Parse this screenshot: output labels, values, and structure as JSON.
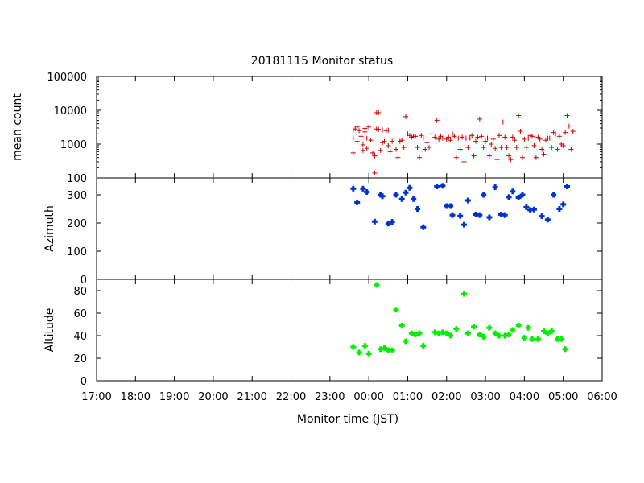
{
  "chart_data": {
    "type": "scatter",
    "title": "20181115 Monitor status",
    "xlabel": "Monitor time (JST)",
    "x_ticks": [
      "17:00",
      "18:00",
      "19:00",
      "20:00",
      "21:00",
      "22:00",
      "23:00",
      "00:00",
      "01:00",
      "02:00",
      "03:00",
      "04:00",
      "05:00",
      "06:00"
    ],
    "xlim_hours": [
      17,
      30
    ],
    "grid": false,
    "panels": [
      {
        "name": "mean-count",
        "ylabel": "mean count",
        "scale": "log",
        "ylim": [
          100,
          100000
        ],
        "y_ticks": [
          "100",
          "1000",
          "10000",
          "100000"
        ],
        "y_tick_values": [
          100,
          1000,
          10000,
          100000
        ],
        "marker": "plus",
        "color": "#cc0000",
        "series": [
          {
            "name": "",
            "points": [
              [
                23.6,
                2600
              ],
              [
                23.6,
                1500
              ],
              [
                23.6,
                550
              ],
              [
                23.65,
                2800
              ],
              [
                23.7,
                3200
              ],
              [
                23.7,
                1200
              ],
              [
                23.75,
                2500
              ],
              [
                23.8,
                1700
              ],
              [
                23.85,
                950
              ],
              [
                23.85,
                650
              ],
              [
                23.9,
                2900
              ],
              [
                23.9,
                2300
              ],
              [
                23.95,
                1500
              ],
              [
                23.95,
                750
              ],
              [
                24.0,
                3200
              ],
              [
                24.05,
                1300
              ],
              [
                24.1,
                550
              ],
              [
                24.15,
                140
              ],
              [
                24.15,
                450
              ],
              [
                24.2,
                2800
              ],
              [
                24.2,
                8500
              ],
              [
                24.25,
                8500
              ],
              [
                24.25,
                2700
              ],
              [
                24.3,
                650
              ],
              [
                24.35,
                1100
              ],
              [
                24.35,
                2600
              ],
              [
                24.4,
                1200
              ],
              [
                24.45,
                2500
              ],
              [
                24.5,
                2600
              ],
              [
                24.5,
                900
              ],
              [
                24.55,
                600
              ],
              [
                24.6,
                1200
              ],
              [
                24.65,
                1500
              ],
              [
                24.7,
                700
              ],
              [
                24.75,
                400
              ],
              [
                24.8,
                1200
              ],
              [
                24.85,
                1300
              ],
              [
                24.9,
                800
              ],
              [
                24.95,
                6500
              ],
              [
                25.0,
                2000
              ],
              [
                25.05,
                1800
              ],
              [
                25.1,
                1600
              ],
              [
                25.15,
                1700
              ],
              [
                25.2,
                1700
              ],
              [
                25.25,
                800
              ],
              [
                25.3,
                400
              ],
              [
                25.35,
                1800
              ],
              [
                25.4,
                1500
              ],
              [
                25.45,
                700
              ],
              [
                25.5,
                1100
              ],
              [
                25.55,
                800
              ],
              [
                25.6,
                2000
              ],
              [
                25.7,
                1600
              ],
              [
                25.75,
                5000
              ],
              [
                25.8,
                1400
              ],
              [
                25.85,
                1700
              ],
              [
                25.9,
                1500
              ],
              [
                26.0,
                1400
              ],
              [
                26.05,
                1600
              ],
              [
                26.1,
                1300
              ],
              [
                26.15,
                2000
              ],
              [
                26.2,
                1700
              ],
              [
                26.25,
                400
              ],
              [
                26.3,
                1500
              ],
              [
                26.35,
                700
              ],
              [
                26.4,
                1600
              ],
              [
                26.45,
                300
              ],
              [
                26.5,
                1500
              ],
              [
                26.55,
                800
              ],
              [
                26.6,
                1500
              ],
              [
                26.65,
                1800
              ],
              [
                26.7,
                450
              ],
              [
                26.75,
                1200
              ],
              [
                26.8,
                1600
              ],
              [
                26.85,
                5500
              ],
              [
                26.9,
                1700
              ],
              [
                26.95,
                800
              ],
              [
                27.0,
                1200
              ],
              [
                27.05,
                1500
              ],
              [
                27.1,
                450
              ],
              [
                27.15,
                1000
              ],
              [
                27.2,
                1400
              ],
              [
                27.25,
                750
              ],
              [
                27.3,
                350
              ],
              [
                27.35,
                1800
              ],
              [
                27.4,
                800
              ],
              [
                27.45,
                4500
              ],
              [
                27.5,
                1600
              ],
              [
                27.55,
                800
              ],
              [
                27.6,
                450
              ],
              [
                27.65,
                350
              ],
              [
                27.7,
                1600
              ],
              [
                27.75,
                1300
              ],
              [
                27.8,
                800
              ],
              [
                27.85,
                7000
              ],
              [
                27.9,
                2400
              ],
              [
                27.95,
                400
              ],
              [
                28.0,
                1400
              ],
              [
                28.05,
                800
              ],
              [
                28.1,
                1500
              ],
              [
                28.15,
                1800
              ],
              [
                28.2,
                1700
              ],
              [
                28.25,
                900
              ],
              [
                28.3,
                400
              ],
              [
                28.35,
                1600
              ],
              [
                28.4,
                1400
              ],
              [
                28.45,
                700
              ],
              [
                28.5,
                500
              ],
              [
                28.55,
                1300
              ],
              [
                28.6,
                1500
              ],
              [
                28.65,
                1500
              ],
              [
                28.7,
                800
              ],
              [
                28.75,
                2200
              ],
              [
                28.8,
                2000
              ],
              [
                28.85,
                700
              ],
              [
                28.9,
                1700
              ],
              [
                28.95,
                1000
              ],
              [
                29.0,
                900
              ],
              [
                29.05,
                2200
              ],
              [
                29.1,
                7000
              ],
              [
                29.15,
                3400
              ],
              [
                29.2,
                700
              ],
              [
                29.25,
                2400
              ]
            ]
          }
        ]
      },
      {
        "name": "azimuth",
        "ylabel": "Azimuth",
        "scale": "linear",
        "ylim": [
          0,
          360
        ],
        "y_ticks": [
          "0",
          "100",
          "200",
          "300"
        ],
        "y_tick_values": [
          0,
          100,
          200,
          300
        ],
        "marker": "filled-plus",
        "color": "#0033cc",
        "series": [
          {
            "name": "",
            "points": [
              [
                23.6,
                322
              ],
              [
                23.7,
                273
              ],
              [
                23.85,
                322
              ],
              [
                23.95,
                310
              ],
              [
                24.15,
                205
              ],
              [
                24.3,
                300
              ],
              [
                24.35,
                295
              ],
              [
                24.5,
                198
              ],
              [
                24.6,
                204
              ],
              [
                24.7,
                300
              ],
              [
                24.85,
                285
              ],
              [
                24.95,
                308
              ],
              [
                25.05,
                325
              ],
              [
                25.15,
                285
              ],
              [
                25.25,
                250
              ],
              [
                25.4,
                185
              ],
              [
                25.75,
                330
              ],
              [
                25.9,
                332
              ],
              [
                26.0,
                260
              ],
              [
                26.1,
                260
              ],
              [
                26.15,
                228
              ],
              [
                26.35,
                225
              ],
              [
                26.45,
                194
              ],
              [
                26.55,
                280
              ],
              [
                26.75,
                230
              ],
              [
                26.85,
                228
              ],
              [
                26.95,
                300
              ],
              [
                27.1,
                220
              ],
              [
                27.25,
                327
              ],
              [
                27.4,
                230
              ],
              [
                27.5,
                228
              ],
              [
                27.6,
                292
              ],
              [
                27.7,
                312
              ],
              [
                27.85,
                290
              ],
              [
                27.95,
                300
              ],
              [
                28.05,
                256
              ],
              [
                28.15,
                246
              ],
              [
                28.25,
                248
              ],
              [
                28.45,
                224
              ],
              [
                28.6,
                212
              ],
              [
                28.75,
                300
              ],
              [
                28.9,
                250
              ],
              [
                29.0,
                266
              ],
              [
                29.1,
                330
              ]
            ]
          }
        ]
      },
      {
        "name": "altitude",
        "ylabel": "Altitude",
        "scale": "linear",
        "ylim": [
          0,
          90
        ],
        "y_ticks": [
          "0",
          "20",
          "40",
          "60",
          "80"
        ],
        "y_tick_values": [
          0,
          20,
          40,
          60,
          80
        ],
        "marker": "filled-plus",
        "color": "#00ee00",
        "series": [
          {
            "name": "",
            "points": [
              [
                23.6,
                30
              ],
              [
                23.75,
                25
              ],
              [
                23.9,
                31
              ],
              [
                24.0,
                24
              ],
              [
                24.2,
                85
              ],
              [
                24.3,
                28
              ],
              [
                24.4,
                29
              ],
              [
                24.5,
                27
              ],
              [
                24.6,
                27
              ],
              [
                24.7,
                63
              ],
              [
                24.85,
                49
              ],
              [
                24.95,
                35
              ],
              [
                25.1,
                42
              ],
              [
                25.2,
                41
              ],
              [
                25.3,
                42
              ],
              [
                25.4,
                31
              ],
              [
                25.7,
                43
              ],
              [
                25.8,
                42
              ],
              [
                25.9,
                43
              ],
              [
                26.0,
                42
              ],
              [
                26.1,
                40
              ],
              [
                26.25,
                46
              ],
              [
                26.45,
                77
              ],
              [
                26.55,
                42
              ],
              [
                26.7,
                48
              ],
              [
                26.85,
                41
              ],
              [
                26.95,
                39
              ],
              [
                27.1,
                47
              ],
              [
                27.25,
                42
              ],
              [
                27.35,
                40
              ],
              [
                27.5,
                40
              ],
              [
                27.6,
                41
              ],
              [
                27.7,
                45
              ],
              [
                27.85,
                49
              ],
              [
                28.0,
                38
              ],
              [
                28.1,
                47
              ],
              [
                28.2,
                37
              ],
              [
                28.35,
                37
              ],
              [
                28.5,
                44
              ],
              [
                28.6,
                42
              ],
              [
                28.7,
                44
              ],
              [
                28.85,
                37
              ],
              [
                28.95,
                37
              ],
              [
                29.05,
                28
              ]
            ]
          }
        ]
      }
    ]
  }
}
